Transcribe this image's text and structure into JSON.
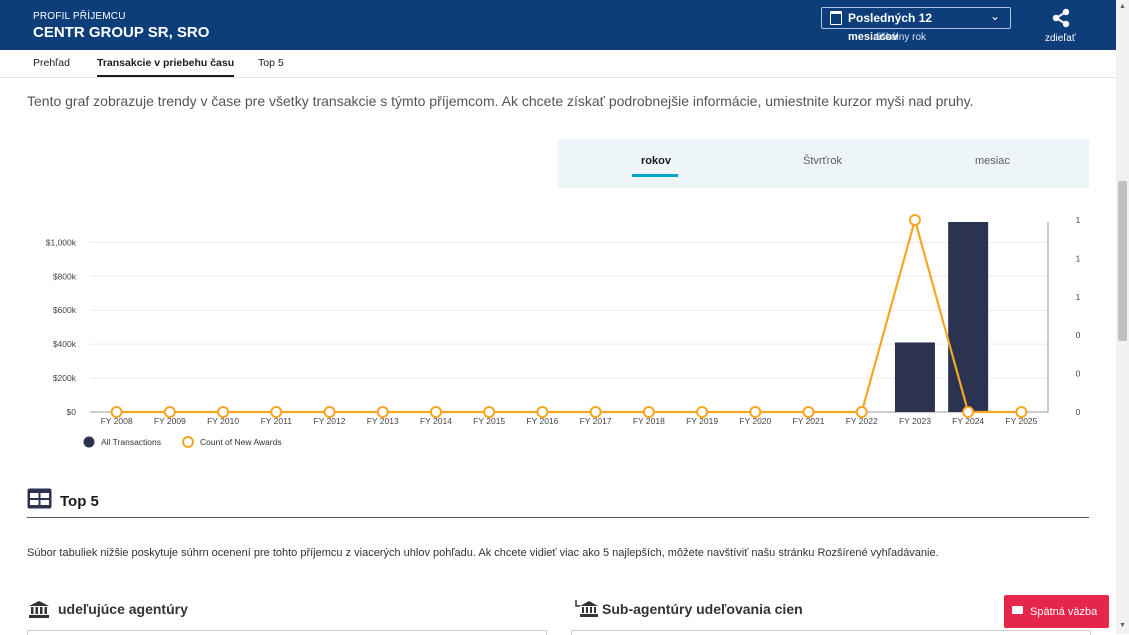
{
  "header": {
    "subtitle": "PROFIL PŘÍJEMCU",
    "title": "CENTR GROUP SR, SRO",
    "period_label": "Posledných 12",
    "period_label_2": "mesiacov",
    "fiscal_label": "fiškálny rok",
    "share_label": "zdieľať"
  },
  "tabs": [
    {
      "label": "Prehľad"
    },
    {
      "label": "Transakcie v priebehu času"
    },
    {
      "label": "Top 5"
    }
  ],
  "intro_text": "Tento graf zobrazuje trendy v čase pre všetky transakcie s týmto příjemcom. Ak chcete získať podrobnejšie informácie, umiestnite kurzor myši nad pruhy.",
  "granularity": {
    "options": [
      "rokov",
      "Štvrťrok",
      "mesiac"
    ],
    "selected": "rokov"
  },
  "chart_data": {
    "type": "bar",
    "categories": [
      "FY 2008",
      "FY 2009",
      "FY 2010",
      "FY 2011",
      "FY 2012",
      "FY 2013",
      "FY 2014",
      "FY 2015",
      "FY 2016",
      "FY 2017",
      "FY 2018",
      "FY 2019",
      "FY 2020",
      "FY 2021",
      "FY 2022",
      "FY 2023",
      "FY 2024",
      "FY 2025"
    ],
    "series": [
      {
        "name": "All Transactions",
        "type": "bar",
        "axis": "left",
        "color": "#2c3350",
        "values": [
          0,
          0,
          0,
          0,
          0,
          0,
          0,
          0,
          0,
          0,
          0,
          0,
          0,
          0,
          0,
          410000,
          1120000,
          0
        ]
      },
      {
        "name": "Count of New Awards",
        "type": "line",
        "axis": "right",
        "color": "#f5a623",
        "values": [
          0,
          0,
          0,
          0,
          0,
          0,
          0,
          0,
          0,
          0,
          0,
          0,
          0,
          0,
          0,
          1,
          0,
          0
        ]
      }
    ],
    "y_left_ticks": [
      "$0",
      "$200k",
      "$400k",
      "$600k",
      "$800k",
      "$1,000k"
    ],
    "y_left_range": [
      0,
      1120000
    ],
    "y_right_ticks": [
      "0",
      "0",
      "0",
      "1",
      "1",
      "1"
    ],
    "y_right_range": [
      0,
      1
    ],
    "grid": true,
    "legend_position": "bottom-left"
  },
  "top5": {
    "title": "Top 5",
    "description": "Súbor tabuliek nižšie poskytuje súhrn ocenení pre tohto příjemcu z viacerých uhlov pohľadu. Ak chcete vidieť viac ako 5 najlepších, môžete navštíviť našu stránku Rozšírené vyhľadávanie.",
    "left_title": "udeľujúce agentúry",
    "right_title": "Sub-agentúry udeľovania cien"
  },
  "feedback_label": "Spätná väzba"
}
